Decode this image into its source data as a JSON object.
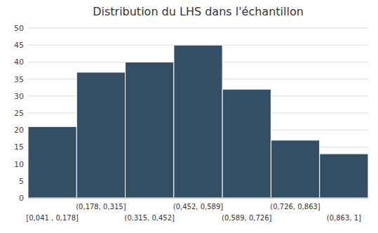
{
  "chart_data": {
    "type": "bar",
    "title": "Distribution du LHS dans l'échantillon",
    "categories": [
      "[0,041 , 0,178]",
      "(0,178, 0,315]",
      "(0,315, 0,452]",
      "(0,452, 0,589]",
      "(0,589, 0,726]",
      "(0,726, 0,863]",
      "(0,863, 1]"
    ],
    "values": [
      21,
      37,
      40,
      45,
      32,
      17,
      13
    ],
    "color": "#344f63",
    "ylim": [
      0,
      50
    ],
    "yticks": [
      0,
      5,
      10,
      15,
      20,
      25,
      30,
      35,
      40,
      45,
      50
    ],
    "grid": true
  }
}
